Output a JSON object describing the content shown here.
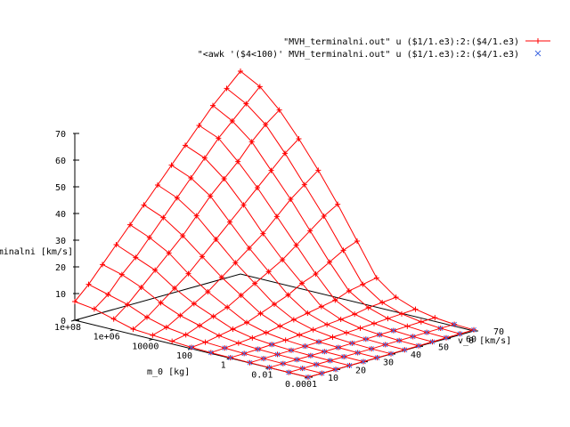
{
  "chart_data": {
    "type": "surface",
    "title": "",
    "xlabel": "m_0 [kg]",
    "ylabel": "v_0 [km/s]",
    "zlabel": "terminalni [km/s]",
    "x_ticks": [
      "1e+08",
      "1e+06",
      "10000",
      "100",
      "1",
      "0.01",
      "0.0001"
    ],
    "y_ticks": [
      "10",
      "20",
      "30",
      "40",
      "50",
      "60",
      "70"
    ],
    "z_ticks": [
      "0",
      "10",
      "20",
      "30",
      "40",
      "50",
      "60",
      "70"
    ],
    "zlim": [
      0,
      70
    ],
    "legend_position": "top-right",
    "series": [
      {
        "name": "\"MVH_terminalni.out\" u ($1/1.e3):2:($4/1.e3)",
        "color": "#ff0000",
        "style": "lines+points",
        "marker": "plus"
      },
      {
        "name": "\"<awk '($4<100)' MVH_terminalni.out\" u ($1/1.e3):2:($4/1.e3)",
        "color": "#4169e1",
        "style": "points",
        "marker": "cross"
      }
    ],
    "m_values": [
      "1e+08",
      "1e+07",
      "1e+06",
      "1e+05",
      "10000",
      "1000",
      "100",
      "10",
      "1",
      "0.1",
      "0.01",
      "0.001",
      "0.0001"
    ],
    "v_values": [
      10,
      15,
      20,
      25,
      30,
      35,
      40,
      45,
      50,
      55,
      60,
      65,
      70
    ],
    "z_values": [
      [
        7,
        6,
        4,
        2,
        1.5,
        1,
        0.5,
        0.3,
        0.2,
        0.1,
        0.05,
        0.02,
        0.01
      ],
      [
        12,
        10,
        8,
        5,
        3,
        2,
        1,
        0.6,
        0.3,
        0.2,
        0.1,
        0.05,
        0.02
      ],
      [
        18,
        16,
        13,
        9,
        6,
        4,
        2,
        1,
        0.5,
        0.3,
        0.15,
        0.08,
        0.04
      ],
      [
        24,
        21,
        18,
        13,
        9,
        6,
        3,
        1.5,
        0.8,
        0.4,
        0.2,
        0.1,
        0.05
      ],
      [
        30,
        27,
        23,
        17,
        12,
        8,
        4,
        2,
        1,
        0.5,
        0.25,
        0.12,
        0.06
      ],
      [
        36,
        33,
        28,
        22,
        16,
        11,
        6,
        3,
        1.5,
        0.7,
        0.35,
        0.15,
        0.08
      ],
      [
        42,
        39,
        34,
        27,
        20,
        14,
        8,
        4,
        2,
        1,
        0.5,
        0.2,
        0.1
      ],
      [
        48,
        45,
        40,
        32,
        24,
        17,
        10,
        5,
        2.5,
        1.2,
        0.6,
        0.3,
        0.15
      ],
      [
        54,
        51,
        45,
        37,
        28,
        20,
        13,
        6,
        3,
        1.5,
        0.8,
        0.4,
        0.2
      ],
      [
        60,
        57,
        50,
        42,
        33,
        24,
        15,
        7,
        3.5,
        1.8,
        0.9,
        0.45,
        0.25
      ],
      [
        66,
        62,
        56,
        47,
        38,
        28,
        18,
        9,
        4.5,
        2.2,
        1.1,
        0.55,
        0.3
      ],
      [
        71,
        67,
        61,
        52,
        42,
        32,
        21,
        10,
        5,
        2.5,
        1.3,
        0.65,
        0.35
      ],
      [
        76,
        72,
        65,
        56,
        46,
        35,
        23,
        11,
        5.5,
        2.8,
        1.4,
        0.7,
        0.4
      ]
    ]
  }
}
